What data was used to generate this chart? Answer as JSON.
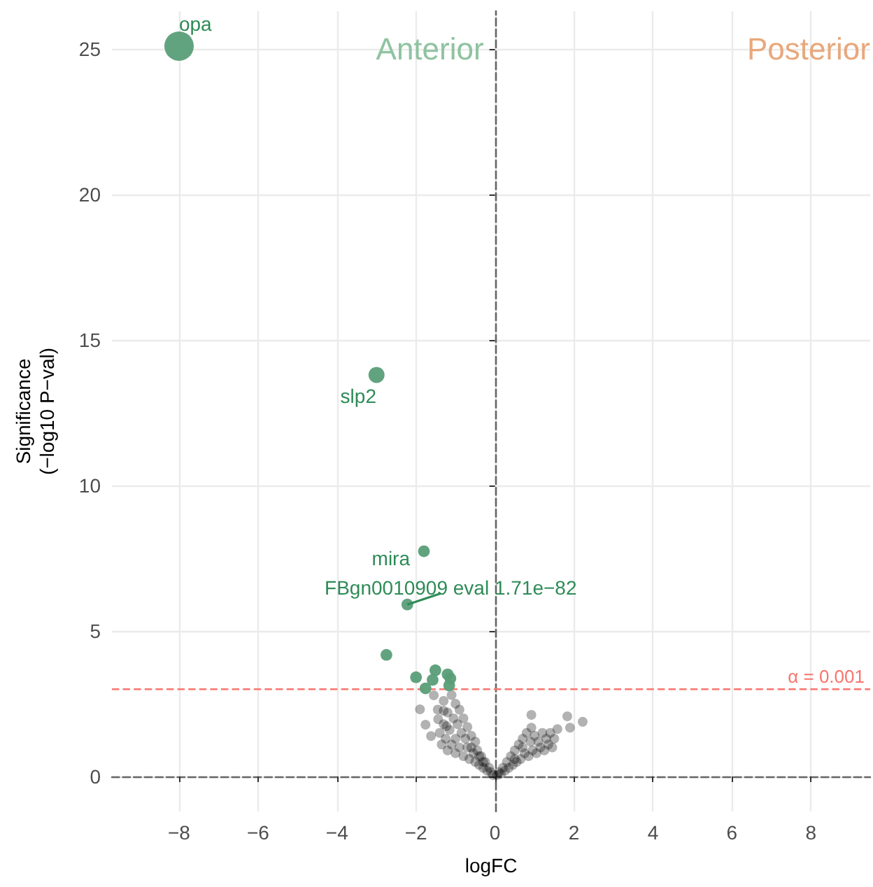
{
  "chart_data": {
    "type": "scatter",
    "xlabel": "logFC",
    "ylabel": "Significance\n(−log10 P−val)",
    "xlim": [
      -9.7,
      9.5
    ],
    "ylim": [
      -1.2,
      26.3
    ],
    "xticks": [
      -8,
      -6,
      -4,
      -2,
      0,
      2,
      4,
      6,
      8
    ],
    "yticks": [
      0,
      5,
      10,
      15,
      20,
      25
    ],
    "grid": true,
    "marker": "circle",
    "series": [
      {
        "color": "#000000",
        "x": [
          -0.05,
          -0.1,
          -0.15,
          -0.2,
          -0.25,
          -0.3,
          -0.35,
          -0.4,
          -0.45,
          -0.5,
          -0.5,
          -0.55,
          -0.6,
          -0.65,
          -0.7,
          -0.7,
          -0.75,
          -0.8,
          -0.8,
          -0.85,
          -0.9,
          -0.9,
          -0.95,
          -1.0,
          -1.0,
          -1.0,
          -1.05,
          -1.1,
          -1.1,
          -1.15,
          -1.2,
          -1.2,
          -1.25,
          -1.3,
          -1.3,
          -1.35,
          -1.4,
          -1.45,
          -0.6,
          -0.4,
          -0.3,
          -1.9,
          -1.55,
          -1.76,
          -1.44,
          -1.62,
          -1.3,
          -1.23,
          0.05,
          0.1,
          0.15,
          0.2,
          0.25,
          0.3,
          0.35,
          0.4,
          0.45,
          0.5,
          0.55,
          0.6,
          0.65,
          0.7,
          0.75,
          0.8,
          0.85,
          0.9,
          0.95,
          1.0,
          1.05,
          1.1,
          1.15,
          1.2,
          1.25,
          1.3,
          1.35,
          1.4,
          1.45,
          1.5,
          0.7,
          0.5,
          0.92,
          0.92,
          1.83,
          1.9,
          2.22,
          1.58
        ],
        "values": [
          0.05,
          0.15,
          0.3,
          0.2,
          0.5,
          0.3,
          0.7,
          0.4,
          0.9,
          0.5,
          1.2,
          0.8,
          1.4,
          0.6,
          1.0,
          1.7,
          1.3,
          0.7,
          2.0,
          1.5,
          1.0,
          2.3,
          1.8,
          0.8,
          1.3,
          2.5,
          2.0,
          1.1,
          2.8,
          1.6,
          0.9,
          2.2,
          1.3,
          2.6,
          1.8,
          1.1,
          1.5,
          2.3,
          1.0,
          0.7,
          0.5,
          2.31,
          2.79,
          1.78,
          1.97,
          1.39,
          2.26,
          1.73,
          0.05,
          0.15,
          0.1,
          0.3,
          0.2,
          0.5,
          0.3,
          0.7,
          0.4,
          0.9,
          0.5,
          1.1,
          0.6,
          1.3,
          0.8,
          1.5,
          0.7,
          1.2,
          0.9,
          1.4,
          0.8,
          1.2,
          1.0,
          1.5,
          0.9,
          1.3,
          1.1,
          1.5,
          1.0,
          1.3,
          1.0,
          0.6,
          2.12,
          1.68,
          2.07,
          1.68,
          1.88,
          1.63
        ]
      },
      {
        "type": "bubble",
        "color": "#5a9e78",
        "x": [
          -8,
          -3.0,
          -1.8,
          -2.22,
          -2.75,
          -2.0,
          -1.51,
          -1.58,
          -1.2,
          -1.16,
          -1.76,
          -1.13
        ],
        "values": [
          25.1,
          13.8,
          7.74,
          5.91,
          4.18,
          3.41,
          3.65,
          3.32,
          3.51,
          3.13,
          3.03,
          3.37
        ],
        "sizes": [
          1,
          0.3,
          0.16,
          0.16,
          0.16,
          0.16,
          0.16,
          0.16,
          0.16,
          0.16,
          0.16,
          0.16
        ]
      }
    ],
    "ref_lines": [
      {
        "axis": "y",
        "value": 3,
        "color": "#f8766d",
        "line_style": "dashed"
      }
    ],
    "annotations": [
      "Anterior",
      "Posterior",
      {
        "text": "opa",
        "x": -8,
        "y": 25.1
      },
      {
        "text": "slp2",
        "x": -3.0,
        "y": 13.8
      },
      {
        "text": "mira",
        "x": -1.8,
        "y": 7.74
      },
      {
        "text": "FBgn0010909 eval 1.71e−82",
        "x": -2.22,
        "y": 5.91
      },
      {
        "text": "α = 0.001",
        "y": 3
      }
    ]
  }
}
